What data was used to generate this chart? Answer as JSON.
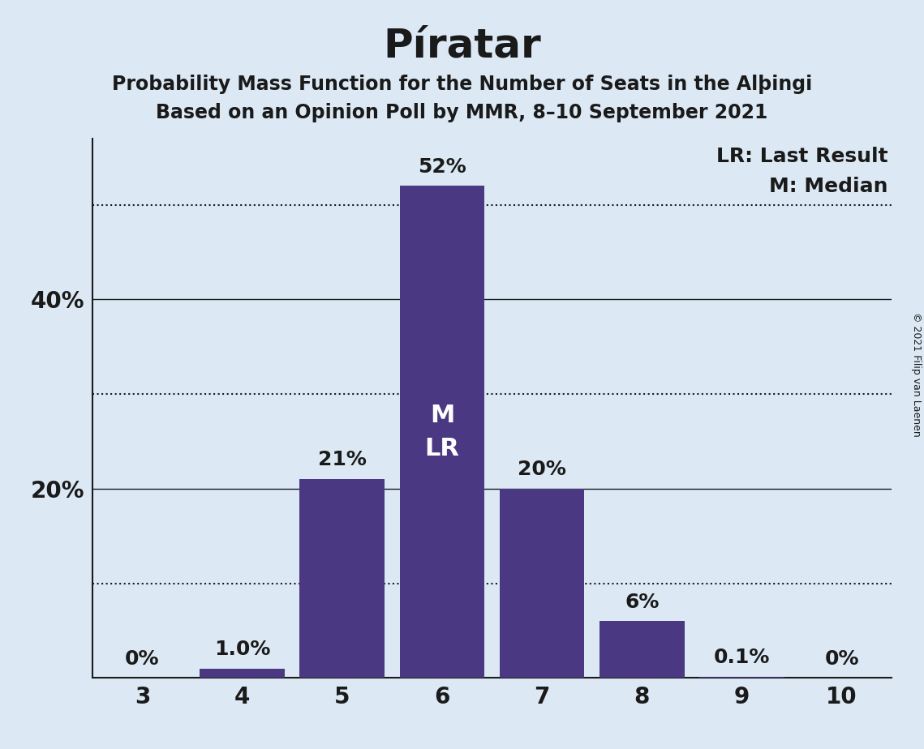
{
  "title": "Píratar",
  "subtitle1": "Probability Mass Function for the Number of Seats in the Alþingi",
  "subtitle2": "Based on an Opinion Poll by MMR, 8–10 September 2021",
  "categories": [
    3,
    4,
    5,
    6,
    7,
    8,
    9,
    10
  ],
  "values": [
    0.0,
    1.0,
    21.0,
    52.0,
    20.0,
    6.0,
    0.1,
    0.0
  ],
  "bar_color": "#4B3882",
  "bg_color": "#dce9f5",
  "text_color": "#1a1a1a",
  "label_color_above": "#1a1a1a",
  "label_color_inside": "#ffffff",
  "bar_labels": [
    "0%",
    "1.0%",
    "21%",
    "52%",
    "20%",
    "6%",
    "0.1%",
    "0%"
  ],
  "median_seat": 6,
  "lr_seat": 6,
  "ylim": [
    0,
    57
  ],
  "solid_gridlines": [
    20,
    40
  ],
  "dotted_gridlines": [
    10,
    30,
    50
  ],
  "ytick_positions": [
    20,
    40
  ],
  "ytick_labels": [
    "20%",
    "40%"
  ],
  "legend_lr": "LR: Last Result",
  "legend_m": "M: Median",
  "copyright": "© 2021 Filip van Laenen",
  "grid_color": "#1a1a1a",
  "title_fontsize": 36,
  "subtitle_fontsize": 17,
  "label_fontsize": 18,
  "axis_fontsize": 20,
  "inside_label_fontsize": 22,
  "legend_fontsize": 18,
  "copyright_fontsize": 9
}
